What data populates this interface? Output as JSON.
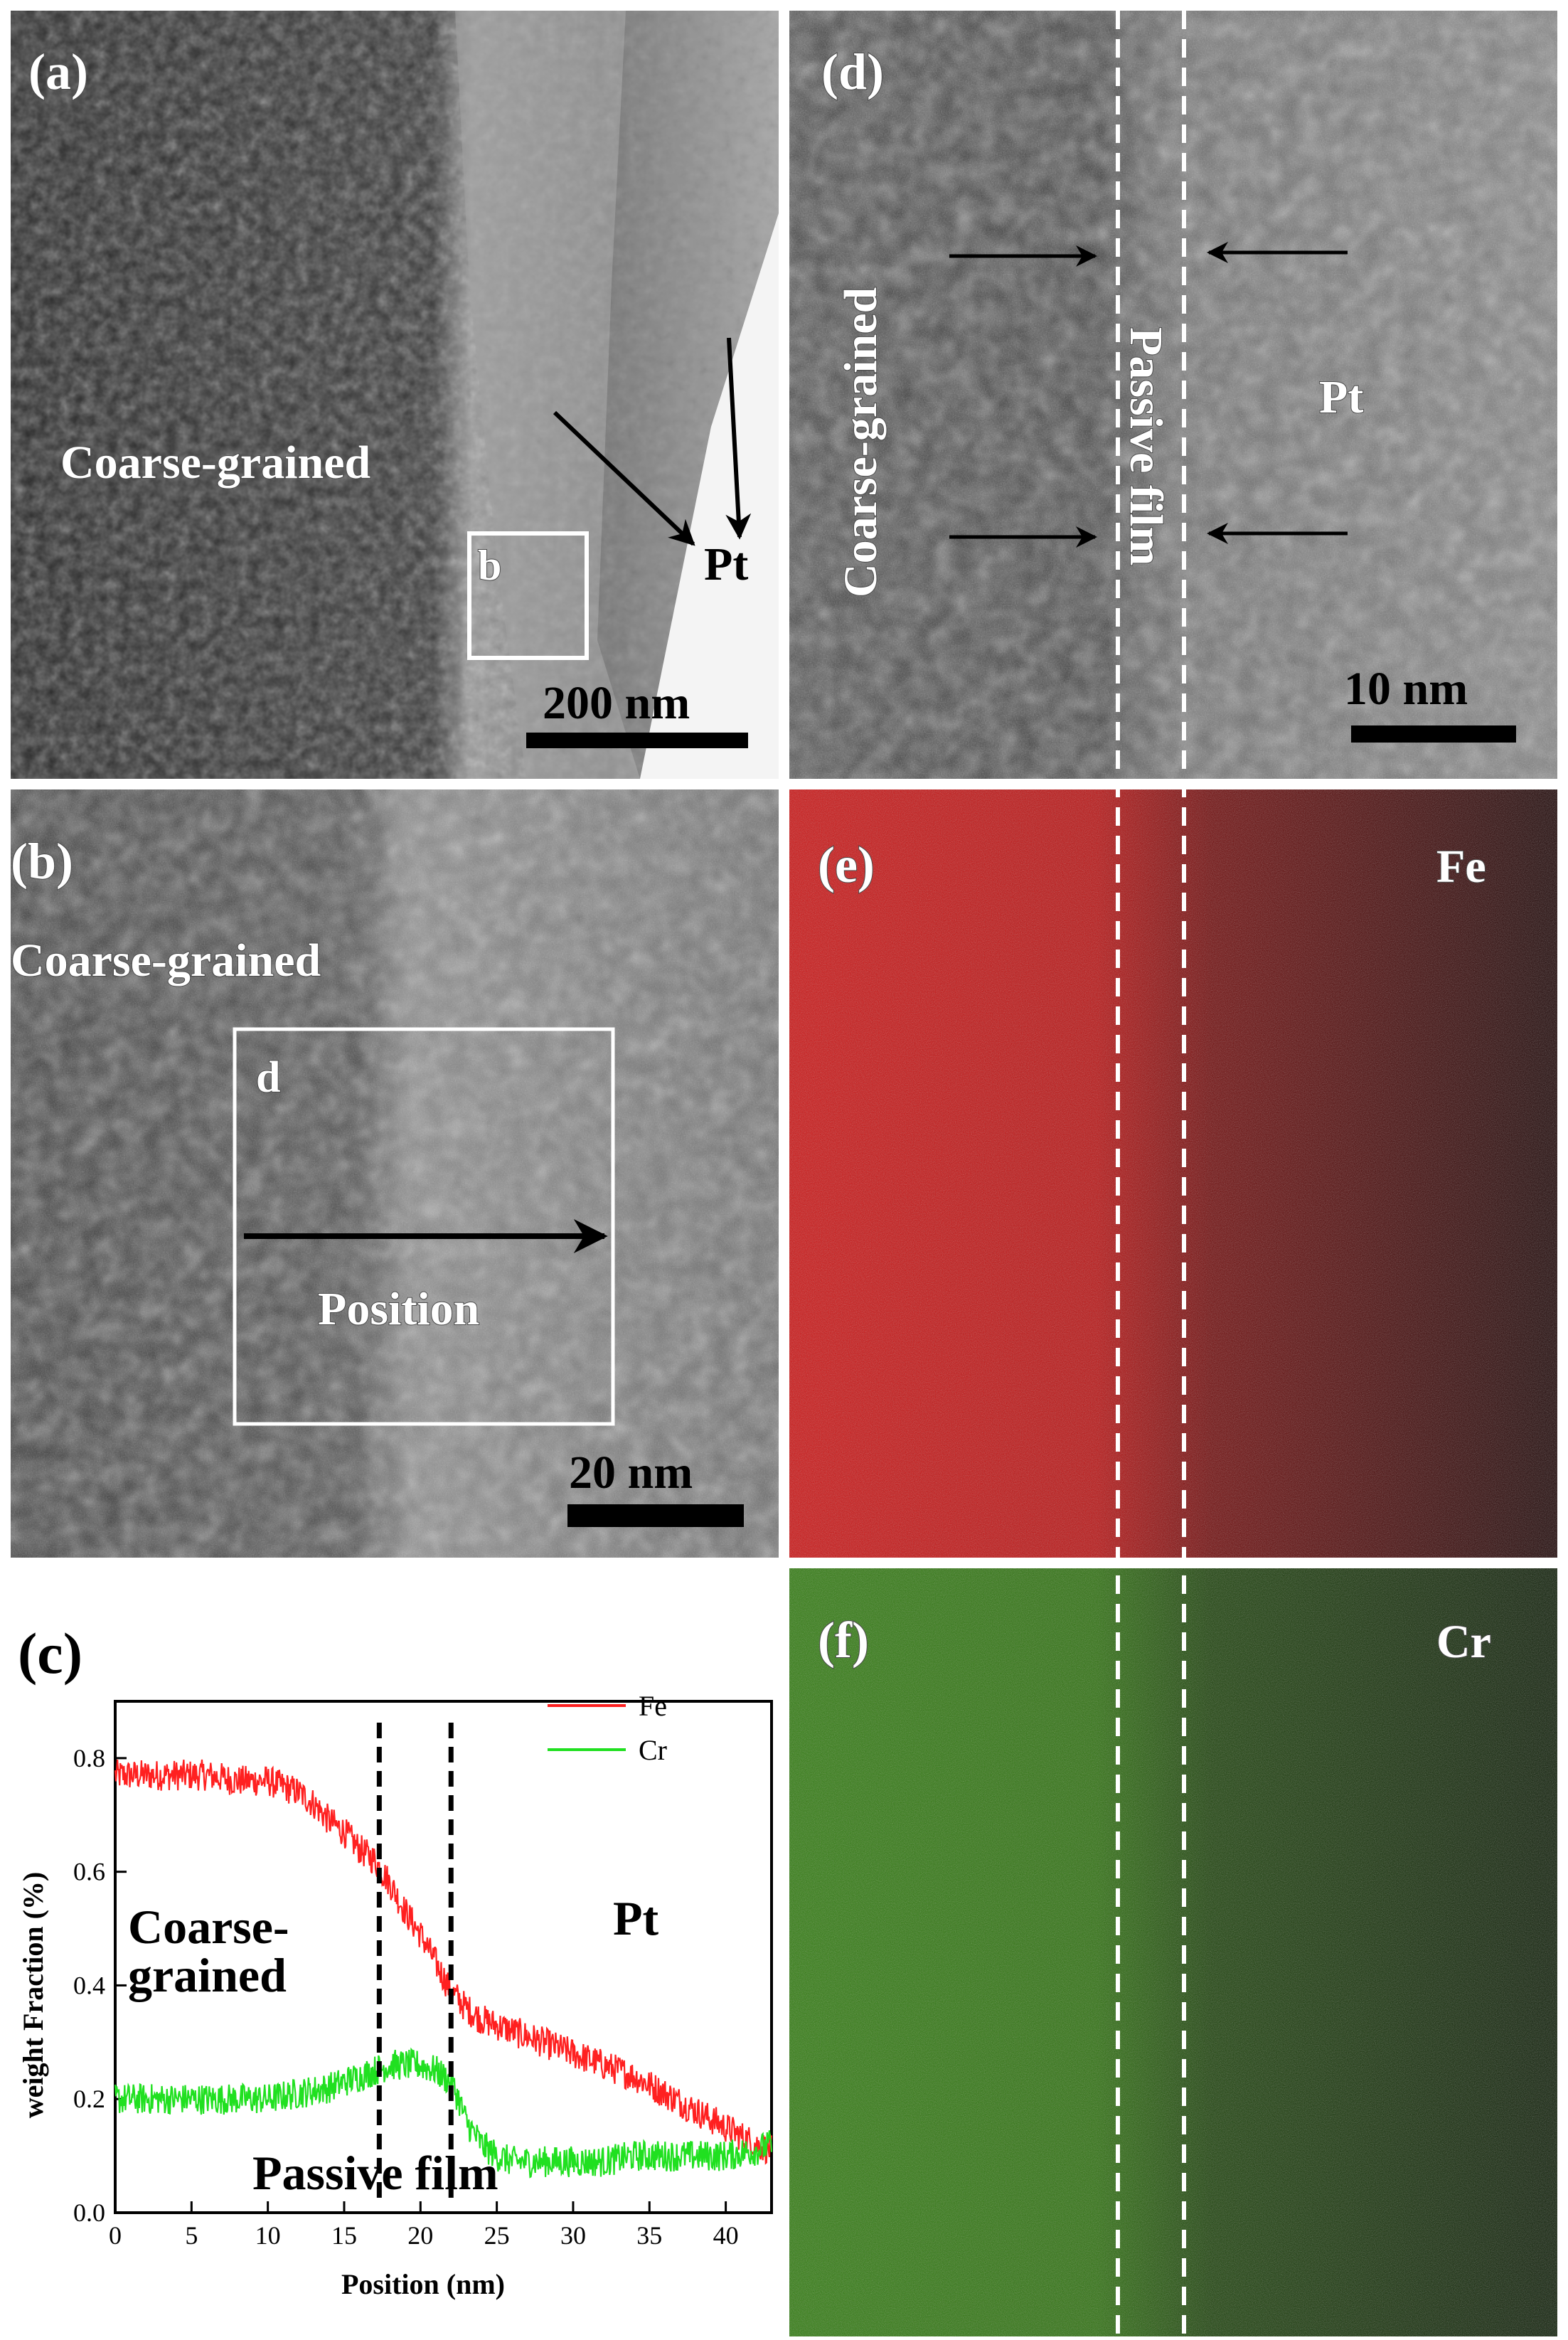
{
  "panels": {
    "a": {
      "tag": "(a)",
      "region_label": "Coarse-grained",
      "pt_label": "Pt",
      "box_label": "b",
      "scale_bar": "200 nm"
    },
    "b": {
      "tag": "(b)",
      "region_label": "Coarse-grained",
      "box_label": "d",
      "arrow_label": "Position",
      "scale_bar": "20 nm"
    },
    "d": {
      "tag": "(d)",
      "region_label": "Coarse-grained",
      "film_label": "Passive film",
      "pt_label": "Pt",
      "scale_bar": "10 nm"
    },
    "e": {
      "tag": "(e)",
      "element": "Fe",
      "map_color": "#d01010"
    },
    "f": {
      "tag": "(f)",
      "element": "Cr",
      "map_color": "#3da010"
    }
  },
  "chart_data": {
    "type": "line",
    "panel_tag": "(c)",
    "xlabel": "Position (nm)",
    "ylabel": "weight Fraction (%)",
    "xlim": [
      0,
      43
    ],
    "ylim": [
      0,
      0.9
    ],
    "xticks": [
      0,
      5,
      10,
      15,
      20,
      25,
      30,
      35,
      40
    ],
    "yticks": [
      0.0,
      0.2,
      0.4,
      0.6,
      0.8
    ],
    "ytick_labels": [
      "0.0",
      "0.2",
      "0.4",
      "0.6",
      "0.8"
    ],
    "legend_position": "top-right",
    "vlines_x": [
      17.3,
      22.0
    ],
    "annotations": {
      "coarse_line1": "Coarse-",
      "coarse_line2": "grained",
      "pt": "Pt",
      "passive": "Passive film"
    },
    "series": [
      {
        "name": "Fe",
        "color": "#ff2020",
        "x": [
          0,
          2,
          4,
          6,
          8,
          10,
          12,
          13,
          14,
          15,
          16,
          17,
          18,
          19,
          20,
          21,
          22,
          23,
          24,
          26,
          28,
          30,
          32,
          34,
          36,
          38,
          40,
          42,
          43
        ],
        "y": [
          0.77,
          0.77,
          0.77,
          0.77,
          0.76,
          0.76,
          0.74,
          0.72,
          0.69,
          0.67,
          0.64,
          0.62,
          0.58,
          0.53,
          0.49,
          0.44,
          0.39,
          0.36,
          0.34,
          0.32,
          0.3,
          0.28,
          0.26,
          0.24,
          0.21,
          0.18,
          0.15,
          0.12,
          0.11
        ]
      },
      {
        "name": "Cr",
        "color": "#20e020",
        "x": [
          0,
          2,
          4,
          6,
          8,
          10,
          12,
          14,
          16,
          17,
          18,
          19,
          20,
          21,
          22,
          22.5,
          23,
          24,
          25,
          26,
          28,
          30,
          32,
          34,
          36,
          38,
          40,
          42,
          43
        ],
        "y": [
          0.2,
          0.2,
          0.2,
          0.2,
          0.2,
          0.2,
          0.21,
          0.22,
          0.24,
          0.25,
          0.26,
          0.26,
          0.26,
          0.25,
          0.23,
          0.2,
          0.16,
          0.12,
          0.1,
          0.09,
          0.09,
          0.09,
          0.09,
          0.1,
          0.1,
          0.1,
          0.1,
          0.11,
          0.12
        ]
      }
    ]
  }
}
